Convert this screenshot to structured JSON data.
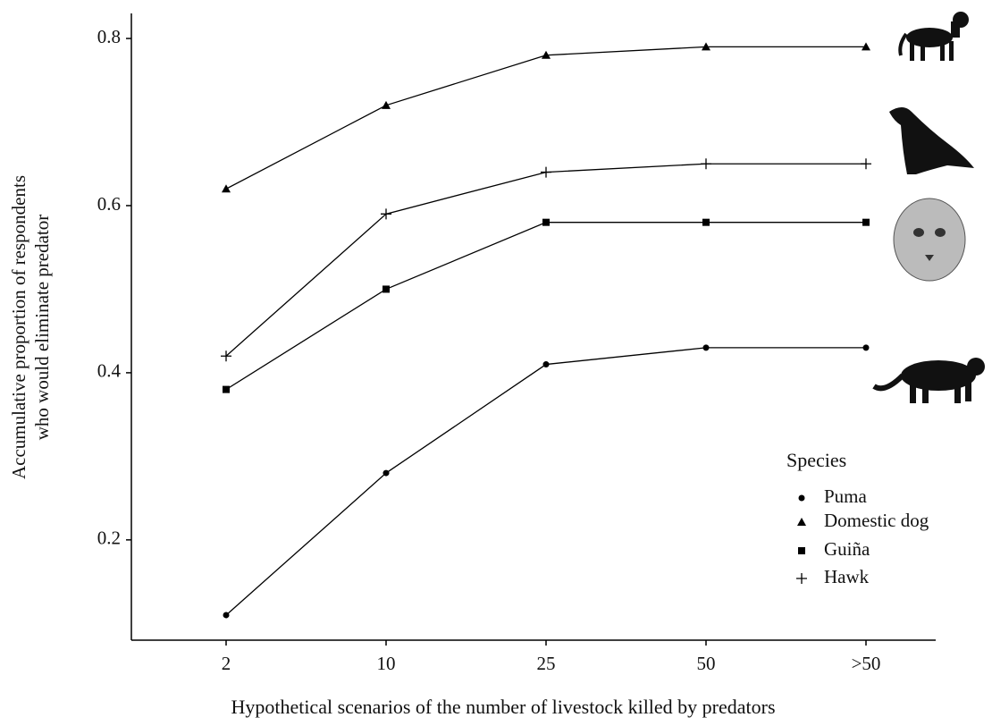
{
  "chart_data": {
    "type": "line",
    "categories": [
      "2",
      "10",
      "25",
      "50",
      ">50"
    ],
    "series": [
      {
        "name": "Puma",
        "color": "#000000",
        "marker": "circle",
        "values": [
          0.11,
          0.28,
          0.41,
          0.43,
          0.43
        ]
      },
      {
        "name": "Domestic dog",
        "color": "#000000",
        "marker": "triangle",
        "values": [
          0.62,
          0.72,
          0.78,
          0.79,
          0.79
        ]
      },
      {
        "name": "Guiña",
        "color": "#000000",
        "marker": "square",
        "values": [
          0.38,
          0.5,
          0.58,
          0.58,
          0.58
        ]
      },
      {
        "name": "Hawk",
        "color": "#000000",
        "marker": "plus",
        "values": [
          0.42,
          0.59,
          0.64,
          0.65,
          0.65
        ]
      }
    ],
    "ylim": [
      0.08,
      0.83
    ],
    "yticks": [
      0.2,
      0.4,
      0.6,
      0.8
    ],
    "xlabel": "Hypothetical scenarios of the number of livestock killed by predators",
    "ylabel": [
      "Accumulative proportion of respondents",
      "who would eliminate predator"
    ],
    "legend_title": "Species",
    "legend_position": "right"
  }
}
